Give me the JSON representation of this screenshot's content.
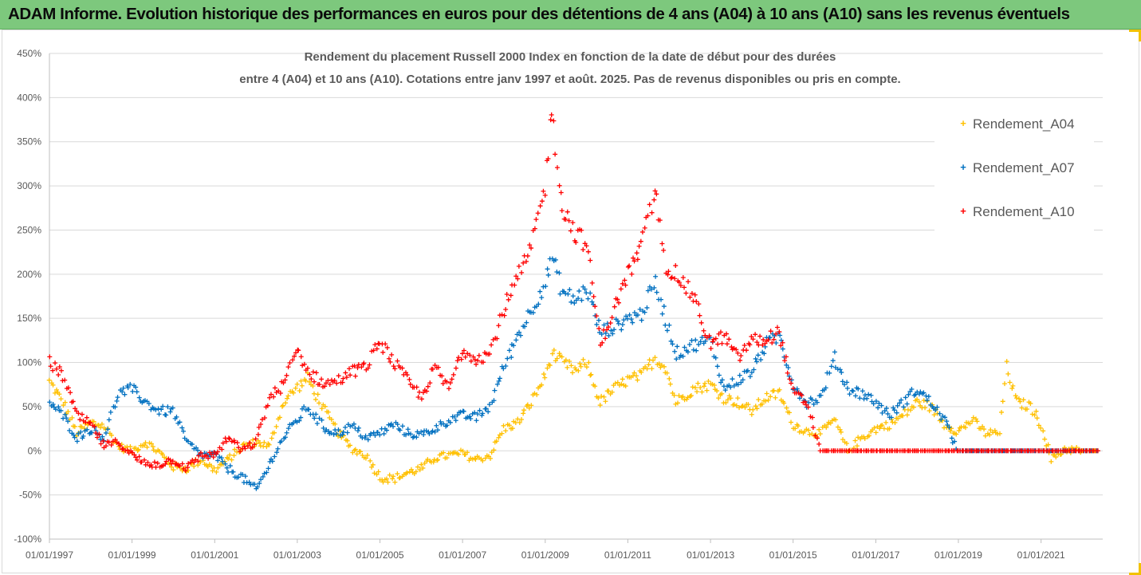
{
  "banner": {
    "text": "ADAM Informe. Evolution historique des performances en euros pour des détentions de 4 ans (A04) à 10 ans (A10) sans les revenus éventuels"
  },
  "colors": {
    "banner_bg": "#7dc87d",
    "A04": "#ffc000",
    "A07": "#0070c0",
    "A10": "#ff0000",
    "grid": "#d9d9d9"
  },
  "chart_data": {
    "type": "scatter",
    "title": [
      "Rendement du placement Russell 2000 Index en fonction de la date de début pour des durées",
      "entre 4 (A04) et 10 ans (A10). Cotations entre janv 1997 et août. 2025. Pas de revenus disponibles ou pris en compte."
    ],
    "xlabel": "",
    "ylabel": "",
    "x_range": [
      "1997-01-01",
      "2022-06-30"
    ],
    "x_ticks": [
      "01/01/1997",
      "01/01/1999",
      "01/01/2001",
      "01/01/2003",
      "01/01/2005",
      "01/01/2007",
      "01/01/2009",
      "01/01/2011",
      "01/01/2013",
      "01/01/2015",
      "01/01/2017",
      "01/01/2019",
      "01/01/2021"
    ],
    "y_range": [
      -1.0,
      4.5
    ],
    "y_ticks": [
      "-100%",
      "-50%",
      "0%",
      "50%",
      "100%",
      "150%",
      "200%",
      "250%",
      "300%",
      "350%",
      "400%",
      "450%"
    ],
    "grid": "horizontal",
    "legend_position": "right",
    "marker": "+",
    "series": [
      {
        "name": "Rendement_A04",
        "points": [
          [
            "1997-01-01",
            0.78
          ],
          [
            "1997-05-01",
            0.55
          ],
          [
            "1997-09-01",
            0.2
          ],
          [
            "1998-01-01",
            0.32
          ],
          [
            "1998-05-01",
            0.28
          ],
          [
            "1998-09-01",
            0.05
          ],
          [
            "1999-01-01",
            0.0
          ],
          [
            "1999-05-01",
            0.1
          ],
          [
            "1999-09-01",
            -0.02
          ],
          [
            "2000-01-01",
            -0.18
          ],
          [
            "2000-05-01",
            -0.2
          ],
          [
            "2000-09-01",
            -0.1
          ],
          [
            "2001-01-01",
            -0.22
          ],
          [
            "2001-05-01",
            -0.1
          ],
          [
            "2001-09-01",
            0.05
          ],
          [
            "2002-01-01",
            0.1
          ],
          [
            "2002-05-01",
            0.05
          ],
          [
            "2002-09-01",
            0.55
          ],
          [
            "2003-01-01",
            0.72
          ],
          [
            "2003-04-01",
            0.82
          ],
          [
            "2003-09-01",
            0.45
          ],
          [
            "2004-01-01",
            0.2
          ],
          [
            "2004-05-01",
            0.02
          ],
          [
            "2004-09-01",
            -0.05
          ],
          [
            "2005-01-01",
            -0.3
          ],
          [
            "2005-05-01",
            -0.32
          ],
          [
            "2005-09-01",
            -0.25
          ],
          [
            "2006-01-01",
            -0.2
          ],
          [
            "2006-05-01",
            -0.08
          ],
          [
            "2006-09-01",
            -0.05
          ],
          [
            "2007-01-01",
            -0.03
          ],
          [
            "2007-05-01",
            -0.1
          ],
          [
            "2007-09-01",
            -0.05
          ],
          [
            "2008-01-01",
            0.25
          ],
          [
            "2008-05-01",
            0.32
          ],
          [
            "2008-09-01",
            0.55
          ],
          [
            "2009-01-01",
            0.85
          ],
          [
            "2009-03-01",
            1.1
          ],
          [
            "2009-06-01",
            1.0
          ],
          [
            "2009-10-01",
            0.9
          ],
          [
            "2010-01-01",
            1.0
          ],
          [
            "2010-05-01",
            0.55
          ],
          [
            "2010-09-01",
            0.7
          ],
          [
            "2011-01-01",
            0.8
          ],
          [
            "2011-05-01",
            0.85
          ],
          [
            "2011-09-01",
            1.05
          ],
          [
            "2011-12-01",
            0.95
          ],
          [
            "2012-03-01",
            0.55
          ],
          [
            "2012-08-01",
            0.7
          ],
          [
            "2013-01-01",
            0.75
          ],
          [
            "2013-05-01",
            0.6
          ],
          [
            "2013-09-01",
            0.55
          ],
          [
            "2014-01-01",
            0.45
          ],
          [
            "2014-05-01",
            0.6
          ],
          [
            "2014-09-01",
            0.65
          ],
          [
            "2015-01-01",
            0.3
          ],
          [
            "2015-05-01",
            0.22
          ],
          [
            "2015-09-01",
            0.2
          ],
          [
            "2016-01-01",
            0.35
          ],
          [
            "2016-05-01",
            0.0
          ],
          [
            "2016-09-01",
            0.15
          ],
          [
            "2017-01-01",
            0.25
          ],
          [
            "2017-05-01",
            0.3
          ],
          [
            "2017-09-01",
            0.4
          ],
          [
            "2018-01-01",
            0.55
          ],
          [
            "2018-05-01",
            0.5
          ],
          [
            "2018-09-01",
            0.3
          ],
          [
            "2019-01-01",
            0.22
          ],
          [
            "2019-05-01",
            0.35
          ],
          [
            "2019-09-01",
            0.2
          ],
          [
            "2020-01-01",
            0.2
          ],
          [
            "2020-03-01",
            0.95
          ],
          [
            "2020-06-01",
            0.55
          ],
          [
            "2020-10-01",
            0.5
          ],
          [
            "2021-01-01",
            0.3
          ],
          [
            "2021-04-01",
            -0.1
          ],
          [
            "2021-08-01",
            0.02
          ],
          [
            "2022-01-01",
            0.0
          ],
          [
            "2022-06-01",
            0.0
          ]
        ]
      },
      {
        "name": "Rendement_A07",
        "points": [
          [
            "1997-01-01",
            0.55
          ],
          [
            "1997-05-01",
            0.4
          ],
          [
            "1997-09-01",
            0.15
          ],
          [
            "1998-01-01",
            0.25
          ],
          [
            "1998-05-01",
            0.15
          ],
          [
            "1998-09-01",
            0.65
          ],
          [
            "1999-01-01",
            0.7
          ],
          [
            "1999-05-01",
            0.55
          ],
          [
            "1999-09-01",
            0.45
          ],
          [
            "2000-01-01",
            0.45
          ],
          [
            "2000-05-01",
            0.1
          ],
          [
            "2000-09-01",
            -0.05
          ],
          [
            "2001-01-01",
            -0.05
          ],
          [
            "2001-05-01",
            -0.2
          ],
          [
            "2001-09-01",
            -0.3
          ],
          [
            "2002-01-01",
            -0.45
          ],
          [
            "2002-05-01",
            -0.15
          ],
          [
            "2002-09-01",
            0.15
          ],
          [
            "2003-01-01",
            0.35
          ],
          [
            "2003-04-01",
            0.5
          ],
          [
            "2003-09-01",
            0.25
          ],
          [
            "2004-01-01",
            0.2
          ],
          [
            "2004-05-01",
            0.28
          ],
          [
            "2004-09-01",
            0.15
          ],
          [
            "2005-01-01",
            0.2
          ],
          [
            "2005-05-01",
            0.3
          ],
          [
            "2005-09-01",
            0.2
          ],
          [
            "2006-01-01",
            0.18
          ],
          [
            "2006-05-01",
            0.25
          ],
          [
            "2006-09-01",
            0.35
          ],
          [
            "2007-01-01",
            0.4
          ],
          [
            "2007-05-01",
            0.38
          ],
          [
            "2007-09-01",
            0.5
          ],
          [
            "2008-01-01",
            0.95
          ],
          [
            "2008-05-01",
            1.3
          ],
          [
            "2008-09-01",
            1.6
          ],
          [
            "2009-01-01",
            1.9
          ],
          [
            "2009-03-01",
            2.2
          ],
          [
            "2009-06-01",
            1.8
          ],
          [
            "2009-10-01",
            1.7
          ],
          [
            "2010-01-01",
            1.85
          ],
          [
            "2010-05-01",
            1.35
          ],
          [
            "2010-09-01",
            1.4
          ],
          [
            "2011-01-01",
            1.5
          ],
          [
            "2011-05-01",
            1.55
          ],
          [
            "2011-09-01",
            1.9
          ],
          [
            "2011-12-01",
            1.5
          ],
          [
            "2012-03-01",
            1.1
          ],
          [
            "2012-08-01",
            1.2
          ],
          [
            "2013-01-01",
            1.25
          ],
          [
            "2013-05-01",
            0.7
          ],
          [
            "2013-09-01",
            0.8
          ],
          [
            "2014-01-01",
            0.9
          ],
          [
            "2014-05-01",
            1.2
          ],
          [
            "2014-09-01",
            1.3
          ],
          [
            "2015-01-01",
            0.75
          ],
          [
            "2015-05-01",
            0.55
          ],
          [
            "2015-09-01",
            0.6
          ],
          [
            "2016-01-01",
            1.05
          ],
          [
            "2016-05-01",
            0.7
          ],
          [
            "2016-09-01",
            0.65
          ],
          [
            "2017-01-01",
            0.55
          ],
          [
            "2017-05-01",
            0.4
          ],
          [
            "2017-09-01",
            0.55
          ],
          [
            "2018-01-01",
            0.7
          ],
          [
            "2018-05-01",
            0.55
          ],
          [
            "2018-09-01",
            0.35
          ],
          [
            "2019-01-01",
            0.0
          ],
          [
            "2020-01-01",
            0.0
          ],
          [
            "2021-01-01",
            0.0
          ],
          [
            "2022-06-01",
            0.0
          ]
        ]
      },
      {
        "name": "Rendement_A10",
        "points": [
          [
            "1997-01-01",
            1.0
          ],
          [
            "1997-05-01",
            0.85
          ],
          [
            "1997-09-01",
            0.4
          ],
          [
            "1998-01-01",
            0.3
          ],
          [
            "1998-05-01",
            0.05
          ],
          [
            "1998-09-01",
            0.1
          ],
          [
            "1999-01-01",
            -0.05
          ],
          [
            "1999-05-01",
            -0.15
          ],
          [
            "1999-09-01",
            -0.15
          ],
          [
            "2000-01-01",
            -0.1
          ],
          [
            "2000-05-01",
            -0.2
          ],
          [
            "2000-09-01",
            -0.05
          ],
          [
            "2001-01-01",
            -0.05
          ],
          [
            "2001-05-01",
            0.15
          ],
          [
            "2001-09-01",
            0.0
          ],
          [
            "2002-01-01",
            0.1
          ],
          [
            "2002-05-01",
            0.6
          ],
          [
            "2002-09-01",
            0.75
          ],
          [
            "2003-01-01",
            1.15
          ],
          [
            "2003-04-01",
            0.9
          ],
          [
            "2003-09-01",
            0.75
          ],
          [
            "2004-01-01",
            0.8
          ],
          [
            "2004-05-01",
            0.9
          ],
          [
            "2004-09-01",
            0.95
          ],
          [
            "2005-01-01",
            1.25
          ],
          [
            "2005-05-01",
            1.0
          ],
          [
            "2005-09-01",
            0.8
          ],
          [
            "2006-01-01",
            0.6
          ],
          [
            "2006-05-01",
            0.95
          ],
          [
            "2006-09-01",
            0.7
          ],
          [
            "2007-01-01",
            1.15
          ],
          [
            "2007-05-01",
            1.05
          ],
          [
            "2007-09-01",
            1.1
          ],
          [
            "2008-01-01",
            1.6
          ],
          [
            "2008-05-01",
            1.95
          ],
          [
            "2008-09-01",
            2.3
          ],
          [
            "2009-01-01",
            3.0
          ],
          [
            "2009-03-01",
            3.85
          ],
          [
            "2009-06-01",
            2.75
          ],
          [
            "2009-10-01",
            2.45
          ],
          [
            "2010-01-01",
            2.35
          ],
          [
            "2010-05-01",
            1.2
          ],
          [
            "2010-09-01",
            1.6
          ],
          [
            "2011-01-01",
            2.0
          ],
          [
            "2011-05-01",
            2.3
          ],
          [
            "2011-09-01",
            2.95
          ],
          [
            "2011-12-01",
            2.1
          ],
          [
            "2012-03-01",
            2.0
          ],
          [
            "2012-08-01",
            1.75
          ],
          [
            "2013-01-01",
            1.2
          ],
          [
            "2013-05-01",
            1.3
          ],
          [
            "2013-09-01",
            1.05
          ],
          [
            "2014-01-01",
            1.25
          ],
          [
            "2014-05-01",
            1.25
          ],
          [
            "2014-09-01",
            1.35
          ],
          [
            "2015-01-01",
            0.65
          ],
          [
            "2015-05-01",
            0.55
          ],
          [
            "2015-09-01",
            0.0
          ],
          [
            "2016-01-01",
            0.0
          ],
          [
            "2017-01-01",
            0.0
          ],
          [
            "2018-01-01",
            0.0
          ],
          [
            "2019-01-01",
            0.0
          ],
          [
            "2020-01-01",
            0.0
          ],
          [
            "2021-01-01",
            0.0
          ],
          [
            "2022-06-01",
            0.0
          ]
        ]
      }
    ]
  }
}
